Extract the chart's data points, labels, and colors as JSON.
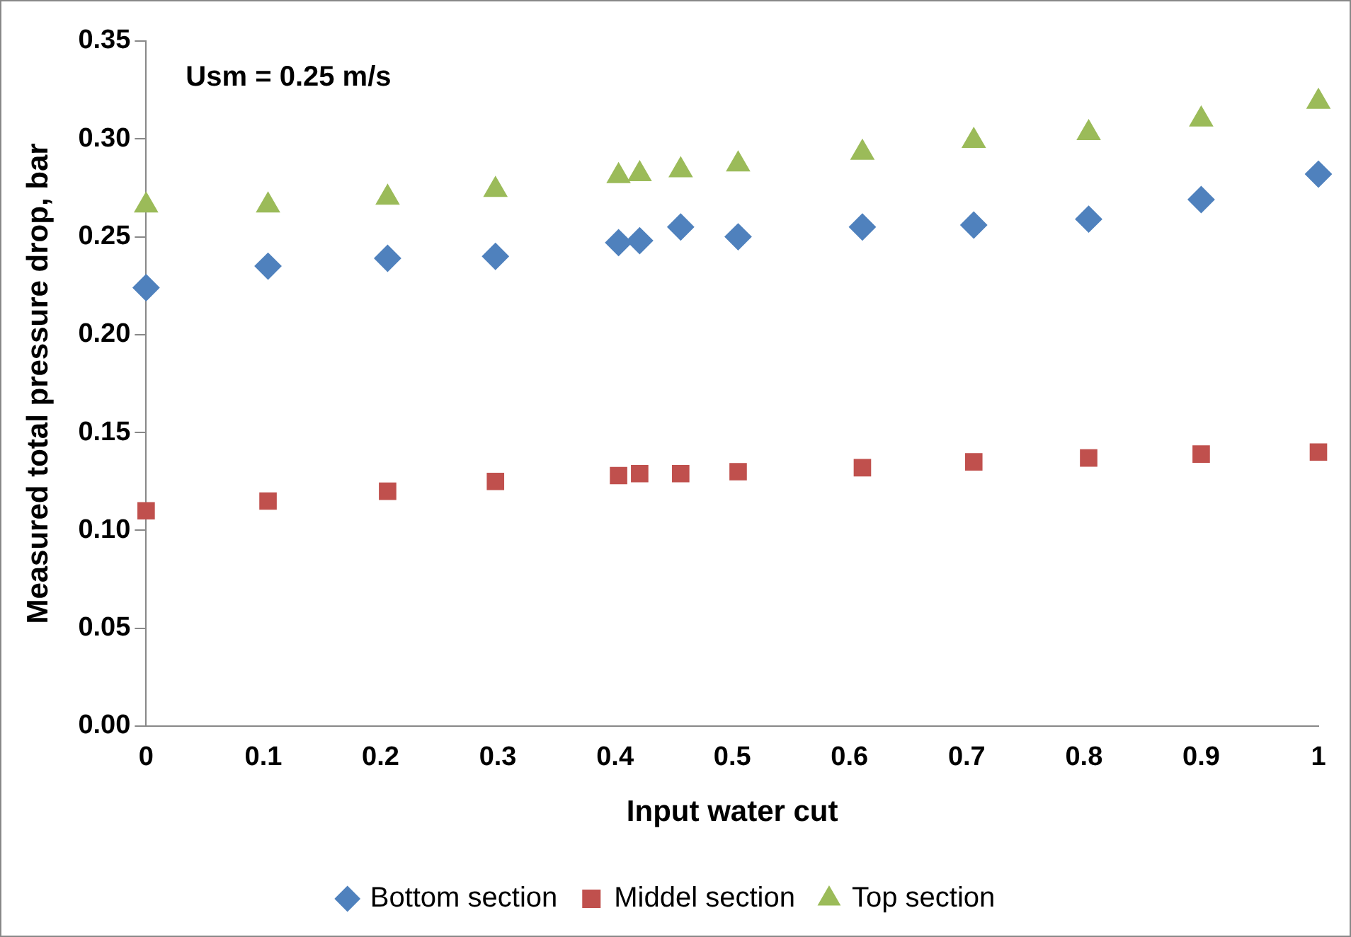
{
  "chart_data": {
    "type": "scatter",
    "xlabel": "Input water cut",
    "ylabel": "Measured total pressure drop, bar",
    "annotations": [
      "Usm = 0.25 m/s"
    ],
    "x": [
      0,
      0.104,
      0.206,
      0.298,
      0.403,
      0.421,
      0.456,
      0.505,
      0.611,
      0.706,
      0.804,
      0.9,
      1.0
    ],
    "series": [
      {
        "name": "Bottom section",
        "color": "#4f81bd",
        "marker": "diamond",
        "values": [
          0.224,
          0.235,
          0.239,
          0.24,
          0.247,
          0.248,
          0.255,
          0.25,
          0.255,
          0.256,
          0.259,
          0.269,
          0.282
        ]
      },
      {
        "name": "Middel section",
        "color": "#c0504d",
        "marker": "square",
        "values": [
          0.11,
          0.115,
          0.12,
          0.125,
          0.128,
          0.129,
          0.129,
          0.13,
          0.132,
          0.135,
          0.137,
          0.139,
          0.14
        ]
      },
      {
        "name": "Top section",
        "color": "#9bbb59",
        "marker": "triangle",
        "values": [
          0.266,
          0.266,
          0.27,
          0.274,
          0.281,
          0.282,
          0.284,
          0.287,
          0.293,
          0.299,
          0.303,
          0.31,
          0.319
        ]
      }
    ],
    "xlim": [
      0,
      1
    ],
    "xticks": [
      0,
      0.1,
      0.2,
      0.3,
      0.4,
      0.5,
      0.6,
      0.7,
      0.8,
      0.9,
      1
    ],
    "ylim": [
      0,
      0.35
    ],
    "yticks": [
      {
        "value": 0,
        "label": "0.00"
      },
      {
        "value": 0.05,
        "label": "0.05"
      },
      {
        "value": 0.1,
        "label": "0.10"
      },
      {
        "value": 0.15,
        "label": "0.15"
      },
      {
        "value": 0.2,
        "label": "0.20"
      },
      {
        "value": 0.25,
        "label": "0.25"
      },
      {
        "value": 0.3,
        "label": "0.30"
      },
      {
        "value": 0.35,
        "label": "0.35"
      }
    ],
    "grid": false,
    "legend": "bottom"
  }
}
